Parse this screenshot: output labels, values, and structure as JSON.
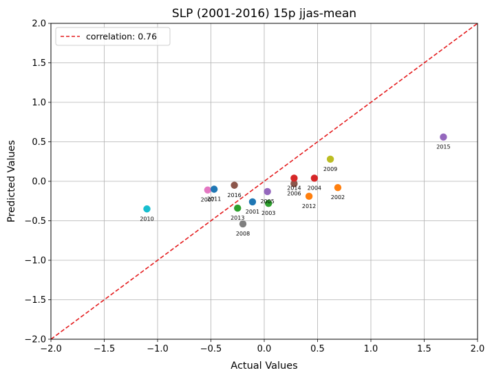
{
  "chart_data": {
    "type": "scatter",
    "title": "SLP (2001-2016) 15p jjas-mean",
    "xlabel": "Actual Values",
    "ylabel": "Predicted Values",
    "xlim": [
      -2.0,
      2.0
    ],
    "ylim": [
      -2.0,
      2.0
    ],
    "x_ticks": [
      "−2.0",
      "−1.5",
      "−1.0",
      "−0.5",
      "0.0",
      "0.5",
      "1.0",
      "1.5",
      "2.0"
    ],
    "y_ticks": [
      "−2.0",
      "−1.5",
      "−1.0",
      "−0.5",
      "0.0",
      "0.5",
      "1.0",
      "1.5",
      "2.0"
    ],
    "tick_values": [
      -2.0,
      -1.5,
      -1.0,
      -0.5,
      0.0,
      0.5,
      1.0,
      1.5,
      2.0
    ],
    "grid": true,
    "legend": {
      "position": "top-left",
      "entries": [
        "correlation: 0.76"
      ]
    },
    "reference_line": {
      "style": "dashed",
      "color": "#e41a1c",
      "from": [
        -2.0,
        -2.0
      ],
      "to": [
        2.0,
        2.0
      ]
    },
    "points": [
      {
        "label": "2001",
        "x": -0.11,
        "y": -0.26,
        "color": "#1f77b4"
      },
      {
        "label": "2002",
        "x": 0.69,
        "y": -0.08,
        "color": "#ff7f0e"
      },
      {
        "label": "2003",
        "x": 0.04,
        "y": -0.28,
        "color": "#2ca02c"
      },
      {
        "label": "2004",
        "x": 0.47,
        "y": 0.04,
        "color": "#d62728"
      },
      {
        "label": "2005",
        "x": 0.03,
        "y": -0.13,
        "color": "#9467bd"
      },
      {
        "label": "2006",
        "x": 0.28,
        "y": -0.03,
        "color": "#8c564b"
      },
      {
        "label": "2007",
        "x": -0.53,
        "y": -0.11,
        "color": "#e377c2"
      },
      {
        "label": "2008",
        "x": -0.2,
        "y": -0.54,
        "color": "#7f7f7f"
      },
      {
        "label": "2009",
        "x": 0.62,
        "y": 0.28,
        "color": "#bcbd22"
      },
      {
        "label": "2010",
        "x": -1.1,
        "y": -0.35,
        "color": "#17becf"
      },
      {
        "label": "2011",
        "x": -0.47,
        "y": -0.1,
        "color": "#1f77b4"
      },
      {
        "label": "2012",
        "x": 0.42,
        "y": -0.19,
        "color": "#ff7f0e"
      },
      {
        "label": "2013",
        "x": -0.25,
        "y": -0.34,
        "color": "#2ca02c"
      },
      {
        "label": "2014",
        "x": 0.28,
        "y": 0.04,
        "color": "#d62728"
      },
      {
        "label": "2015",
        "x": 1.68,
        "y": 0.56,
        "color": "#9467bd"
      },
      {
        "label": "2016",
        "x": -0.28,
        "y": -0.05,
        "color": "#8c564b"
      }
    ]
  }
}
